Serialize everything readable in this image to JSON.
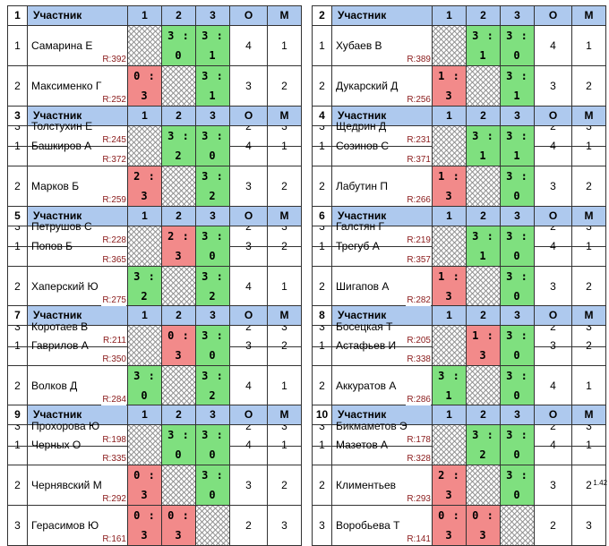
{
  "header": {
    "participant": "Участник",
    "c1": "1",
    "c2": "2",
    "c3": "3",
    "points": "О",
    "place": "М"
  },
  "version": "1.42",
  "groups": [
    {
      "num": "1",
      "rows": [
        {
          "n": "1",
          "name": "Самарина Е",
          "rating": "R:392",
          "s1": "",
          "s2": "3 : 0",
          "s3": "3 : 1",
          "pts": "4",
          "place": "1"
        },
        {
          "n": "2",
          "name": "Максименко Г",
          "rating": "R:252",
          "s1": "0 : 3",
          "s2": "",
          "s3": "3 : 1",
          "pts": "3",
          "place": "2"
        },
        {
          "n": "3",
          "name": "Толстухин Е",
          "rating": "R:245",
          "s1": "1 : 3",
          "s2": "1 : 3",
          "s3": "",
          "pts": "2",
          "place": "3"
        }
      ]
    },
    {
      "num": "2",
      "rows": [
        {
          "n": "1",
          "name": "Хубаев В",
          "rating": "R:389",
          "s1": "",
          "s2": "3 : 1",
          "s3": "3 : 0",
          "pts": "4",
          "place": "1"
        },
        {
          "n": "2",
          "name": "Дукарский Д",
          "rating": "R:256",
          "s1": "1 : 3",
          "s2": "",
          "s3": "3 : 1",
          "pts": "3",
          "place": "2"
        },
        {
          "n": "3",
          "name": "Щедрин Д",
          "rating": "R:231",
          "s1": "0 : 3",
          "s2": "1 : 3",
          "s3": "",
          "pts": "2",
          "place": "3"
        }
      ]
    },
    {
      "num": "3",
      "rows": [
        {
          "n": "1",
          "name": "Башкиров А",
          "rating": "R:372",
          "s1": "",
          "s2": "3 : 2",
          "s3": "3 : 0",
          "pts": "4",
          "place": "1"
        },
        {
          "n": "2",
          "name": "Марков Б",
          "rating": "R:259",
          "s1": "2 : 3",
          "s2": "",
          "s3": "3 : 2",
          "pts": "3",
          "place": "2"
        },
        {
          "n": "3",
          "name": "Петрушов С",
          "rating": "R:228",
          "s1": "0 : 3",
          "s2": "2 : 3",
          "s3": "",
          "pts": "2",
          "place": "3"
        }
      ]
    },
    {
      "num": "4",
      "rows": [
        {
          "n": "1",
          "name": "Созинов С",
          "rating": "R:371",
          "s1": "",
          "s2": "3 : 1",
          "s3": "3 : 1",
          "pts": "4",
          "place": "1"
        },
        {
          "n": "2",
          "name": "Лабутин П",
          "rating": "R:266",
          "s1": "1 : 3",
          "s2": "",
          "s3": "3 : 0",
          "pts": "3",
          "place": "2"
        },
        {
          "n": "3",
          "name": "Галстян Г",
          "rating": "R:219",
          "s1": "1 : 3",
          "s2": "0 : 3",
          "s3": "",
          "pts": "2",
          "place": "3"
        }
      ]
    },
    {
      "num": "5",
      "rows": [
        {
          "n": "1",
          "name": "Попов Б",
          "rating": "R:365",
          "s1": "",
          "s2": "2 : 3",
          "s3": "3 : 0",
          "pts": "3",
          "place": "2"
        },
        {
          "n": "2",
          "name": "Хаперский Ю",
          "rating": "R:275",
          "s1": "3 : 2",
          "s2": "",
          "s3": "3 : 2",
          "pts": "4",
          "place": "1"
        },
        {
          "n": "3",
          "name": "Коротаев В",
          "rating": "R:211",
          "s1": "0 : 3",
          "s2": "2 : 3",
          "s3": "",
          "pts": "2",
          "place": "3"
        }
      ]
    },
    {
      "num": "6",
      "rows": [
        {
          "n": "1",
          "name": "Трегуб А",
          "rating": "R:357",
          "s1": "",
          "s2": "3 : 1",
          "s3": "3 : 0",
          "pts": "4",
          "place": "1"
        },
        {
          "n": "2",
          "name": "Шигапов А",
          "rating": "R:282",
          "s1": "1 : 3",
          "s2": "",
          "s3": "3 : 0",
          "pts": "3",
          "place": "2"
        },
        {
          "n": "3",
          "name": "Босецкая Т",
          "rating": "R:205",
          "s1": "0 : 3",
          "s2": "0 : 3",
          "s3": "",
          "pts": "2",
          "place": "3"
        }
      ]
    },
    {
      "num": "7",
      "rows": [
        {
          "n": "1",
          "name": "Гаврилов А",
          "rating": "R:350",
          "s1": "",
          "s2": "0 : 3",
          "s3": "3 : 0",
          "pts": "3",
          "place": "2"
        },
        {
          "n": "2",
          "name": "Волков Д",
          "rating": "R:284",
          "s1": "3 : 0",
          "s2": "",
          "s3": "3 : 2",
          "pts": "4",
          "place": "1"
        },
        {
          "n": "3",
          "name": "Прохорова Ю",
          "rating": "R:198",
          "s1": "0 : 3",
          "s2": "2 : 3",
          "s3": "",
          "pts": "2",
          "place": "3"
        }
      ]
    },
    {
      "num": "8",
      "rows": [
        {
          "n": "1",
          "name": "Астафьев И",
          "rating": "R:338",
          "s1": "",
          "s2": "1 : 3",
          "s3": "3 : 0",
          "pts": "3",
          "place": "2"
        },
        {
          "n": "2",
          "name": "Аккуратов А",
          "rating": "R:286",
          "s1": "3 : 1",
          "s2": "",
          "s3": "3 : 0",
          "pts": "4",
          "place": "1"
        },
        {
          "n": "3",
          "name": "Бикмаметов Э",
          "rating": "R:178",
          "s1": "0 : 3",
          "s2": "0 : 3",
          "s3": "",
          "pts": "2",
          "place": "3"
        }
      ]
    },
    {
      "num": "9",
      "rows": [
        {
          "n": "1",
          "name": "Черных О",
          "rating": "R:335",
          "s1": "",
          "s2": "3 : 0",
          "s3": "3 : 0",
          "pts": "4",
          "place": "1"
        },
        {
          "n": "2",
          "name": "Чернявский М",
          "rating": "R:292",
          "s1": "0 : 3",
          "s2": "",
          "s3": "3 : 0",
          "pts": "3",
          "place": "2"
        },
        {
          "n": "3",
          "name": "Герасимов Ю",
          "rating": "R:161",
          "s1": "0 : 3",
          "s2": "0 : 3",
          "s3": "",
          "pts": "2",
          "place": "3"
        }
      ]
    },
    {
      "num": "10",
      "rows": [
        {
          "n": "1",
          "name": "Мазетов А",
          "rating": "R:328",
          "s1": "",
          "s2": "3 : 2",
          "s3": "3 : 0",
          "pts": "4",
          "place": "1"
        },
        {
          "n": "2",
          "name": "Климентьев",
          "rating": "R:293",
          "s1": "2 : 3",
          "s2": "",
          "s3": "3 : 0",
          "pts": "3",
          "place": "2"
        },
        {
          "n": "3",
          "name": "Воробьева Т",
          "rating": "R:141",
          "s1": "0 : 3",
          "s2": "0 : 3",
          "s3": "",
          "pts": "2",
          "place": "3"
        }
      ]
    }
  ]
}
